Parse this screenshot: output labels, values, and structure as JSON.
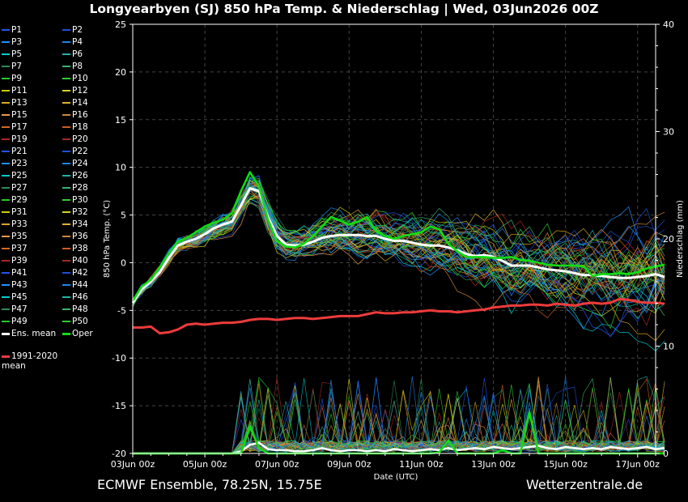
{
  "title": "Longyearbyen  (SJ)  850 hPa Temp. & Niederschlag | Wed, 03Jun2026 00Z",
  "footer_left": "ECMWF Ensemble, 78.25N, 15.75E",
  "footer_right": "Wetterzentrale.de",
  "chart_data": {
    "type": "line",
    "title": "Longyearbyen  (SJ)  850 hPa Temp. & Niederschlag | Wed, 03Jun2026 00Z",
    "xlabel": "Date (UTC)",
    "ylabel": "850 hPa Temp. (°C)",
    "y2label": "Niederschlag (mm)",
    "ylim": [
      -20,
      25
    ],
    "y2lim": [
      0,
      40
    ],
    "yticks": [
      -20,
      -15,
      -10,
      -5,
      0,
      5,
      10,
      15,
      20,
      25
    ],
    "y2ticks": [
      0,
      10,
      20,
      30,
      40
    ],
    "x_start": "03Jun 00z",
    "x_step_hours": 6,
    "x_end_hours": 348,
    "xticks": [
      {
        "label": "03Jun 00z",
        "hours": 0
      },
      {
        "label": "05Jun 00z",
        "hours": 48
      },
      {
        "label": "07Jun 00z",
        "hours": 96
      },
      {
        "label": "09Jun 00z",
        "hours": 144
      },
      {
        "label": "11Jun 00z",
        "hours": 192
      },
      {
        "label": "13Jun 00z",
        "hours": 240
      },
      {
        "label": "15Jun 00z",
        "hours": 288
      },
      {
        "label": "17Jun 00z",
        "hours": 336
      }
    ],
    "grid": true,
    "legend_position": "left",
    "ens_mean_label": "Ens. mean",
    "oper_label": "Oper",
    "clim_label": "1991-2020 mean",
    "series": [
      {
        "name": "Ens. mean",
        "color": "#ffffff",
        "key": "ens_mean_temp",
        "values": [
          -4.2,
          -2.8,
          -2.0,
          -1.0,
          0.5,
          1.8,
          2.2,
          2.5,
          3.0,
          3.6,
          4.0,
          4.3,
          6.0,
          7.8,
          7.5,
          4.8,
          2.8,
          1.9,
          1.8,
          1.9,
          2.2,
          2.6,
          2.8,
          2.9,
          2.9,
          2.9,
          2.8,
          2.8,
          2.5,
          2.3,
          2.3,
          2.1,
          1.9,
          1.8,
          1.8,
          1.6,
          1.3,
          0.9,
          0.7,
          0.8,
          0.6,
          0.2,
          -0.3,
          -0.3,
          -0.3,
          -0.5,
          -0.7,
          -0.8,
          -0.9,
          -1.1,
          -1.3,
          -1.3,
          -1.4,
          -1.5,
          -1.6,
          -1.6,
          -1.5,
          -1.4,
          -1.2,
          -1.5
        ]
      },
      {
        "name": "Oper",
        "color": "#11dd11",
        "key": "oper_temp",
        "values": [
          -4.0,
          -2.5,
          -1.8,
          -0.5,
          1.0,
          2.2,
          2.6,
          3.2,
          3.8,
          4.2,
          4.5,
          5.2,
          7.5,
          9.5,
          8.0,
          4.5,
          2.3,
          1.7,
          1.6,
          2.0,
          2.8,
          3.8,
          4.8,
          4.4,
          4.0,
          4.3,
          4.8,
          3.3,
          2.8,
          2.5,
          2.8,
          3.0,
          3.2,
          3.8,
          3.5,
          2.0,
          1.2,
          0.6,
          0.6,
          0.6,
          0.5,
          0.5,
          0.6,
          0.3,
          0.2,
          0.0,
          -0.2,
          -0.3,
          -0.3,
          -0.3,
          -0.4,
          -1.4,
          -1.2,
          -1.2,
          -1.1,
          -1.2,
          -1.0,
          -0.6,
          -0.4,
          -0.2
        ]
      },
      {
        "name": "1991-2020 mean",
        "color": "#ee3b3b",
        "key": "clim_temp",
        "values": [
          -6.8,
          -6.8,
          -6.7,
          -7.4,
          -7.3,
          -7.0,
          -6.5,
          -6.4,
          -6.5,
          -6.4,
          -6.3,
          -6.3,
          -6.2,
          -6.0,
          -5.9,
          -5.9,
          -6.0,
          -5.9,
          -5.8,
          -5.8,
          -5.9,
          -5.8,
          -5.7,
          -5.6,
          -5.6,
          -5.6,
          -5.4,
          -5.2,
          -5.3,
          -5.3,
          -5.2,
          -5.2,
          -5.1,
          -5.0,
          -5.1,
          -5.1,
          -5.2,
          -5.1,
          -5.0,
          -4.9,
          -4.7,
          -4.6,
          -4.5,
          -4.5,
          -4.4,
          -4.4,
          -4.5,
          -4.3,
          -4.4,
          -4.5,
          -4.3,
          -4.2,
          -4.3,
          -4.2,
          -3.8,
          -3.9,
          -4.1,
          -4.2,
          -4.2,
          -4.3
        ]
      },
      {
        "name": "Ens. mean precipitation",
        "color": "#ffffff",
        "axis": "y2",
        "key": "ens_mean_precip",
        "values": [
          0,
          0,
          0,
          0,
          0,
          0,
          0,
          0,
          0,
          0,
          0,
          0,
          0.2,
          0.8,
          1.0,
          0.4,
          0.3,
          0.3,
          0.2,
          0.2,
          0.3,
          0.5,
          0.3,
          0.2,
          0.3,
          0.3,
          0.2,
          0.3,
          0.2,
          0.4,
          0.3,
          0.2,
          0.3,
          0.4,
          0.3,
          0.5,
          0.3,
          0.4,
          0.5,
          0.4,
          0.6,
          0.5,
          0.4,
          0.5,
          0.6,
          0.7,
          0.5,
          0.4,
          0.6,
          0.5,
          0.4,
          0.5,
          0.4,
          0.6,
          0.5,
          0.4,
          0.5,
          0.6,
          0.4,
          0.5
        ]
      },
      {
        "name": "Oper precipitation",
        "color": "#11dd11",
        "axis": "y2",
        "key": "oper_precip",
        "values": [
          0,
          0,
          0,
          0,
          0,
          0,
          0,
          0,
          0,
          0,
          0,
          0,
          0,
          2.5,
          0.5,
          0,
          0,
          0,
          0,
          0,
          0,
          0,
          0,
          0,
          0,
          0,
          0,
          0,
          0,
          0,
          0,
          0,
          0,
          0,
          0.1,
          1.2,
          0,
          0,
          0,
          0,
          0,
          0.3,
          0,
          0,
          3.8,
          0,
          0,
          0,
          0,
          0,
          0,
          0,
          0,
          0,
          0,
          0,
          0,
          0,
          0,
          0
        ]
      }
    ],
    "legend_entries": [
      {
        "name": "P1",
        "color": "#2255ee"
      },
      {
        "name": "P2",
        "color": "#1f4fd8"
      },
      {
        "name": "P3",
        "color": "#1e90ff"
      },
      {
        "name": "P4",
        "color": "#1c86ee"
      },
      {
        "name": "P5",
        "color": "#00cdcd"
      },
      {
        "name": "P6",
        "color": "#20b2aa"
      },
      {
        "name": "P7",
        "color": "#2e8b57"
      },
      {
        "name": "P8",
        "color": "#3cb371"
      },
      {
        "name": "P9",
        "color": "#22cc22"
      },
      {
        "name": "P10",
        "color": "#32cd32"
      },
      {
        "name": "P11",
        "color": "#cdcd00"
      },
      {
        "name": "P12",
        "color": "#d2d22a"
      },
      {
        "name": "P13",
        "color": "#daa520"
      },
      {
        "name": "P14",
        "color": "#e0b030"
      },
      {
        "name": "P15",
        "color": "#ee9a49"
      },
      {
        "name": "P16",
        "color": "#cd853f"
      },
      {
        "name": "P17",
        "color": "#d2691e"
      },
      {
        "name": "P18",
        "color": "#cd5c1f"
      },
      {
        "name": "P19",
        "color": "#b22222"
      },
      {
        "name": "P20",
        "color": "#a52a2a"
      },
      {
        "name": "P21",
        "color": "#2255ee"
      },
      {
        "name": "P22",
        "color": "#1f4fd8"
      },
      {
        "name": "P23",
        "color": "#1e90ff"
      },
      {
        "name": "P24",
        "color": "#1c86ee"
      },
      {
        "name": "P25",
        "color": "#00cdcd"
      },
      {
        "name": "P26",
        "color": "#20b2aa"
      },
      {
        "name": "P27",
        "color": "#2e8b57"
      },
      {
        "name": "P28",
        "color": "#3cb371"
      },
      {
        "name": "P29",
        "color": "#22cc22"
      },
      {
        "name": "P30",
        "color": "#32cd32"
      },
      {
        "name": "P31",
        "color": "#cdcd00"
      },
      {
        "name": "P32",
        "color": "#d2d22a"
      },
      {
        "name": "P33",
        "color": "#daa520"
      },
      {
        "name": "P34",
        "color": "#e0b030"
      },
      {
        "name": "P35",
        "color": "#ee9a49"
      },
      {
        "name": "P36",
        "color": "#cd853f"
      },
      {
        "name": "P37",
        "color": "#d2691e"
      },
      {
        "name": "P38",
        "color": "#cd5c1f"
      },
      {
        "name": "P39",
        "color": "#b22222"
      },
      {
        "name": "P40",
        "color": "#a52a2a"
      },
      {
        "name": "P41",
        "color": "#2255ee"
      },
      {
        "name": "P42",
        "color": "#1f4fd8"
      },
      {
        "name": "P43",
        "color": "#1e90ff"
      },
      {
        "name": "P44",
        "color": "#1c86ee"
      },
      {
        "name": "P45",
        "color": "#00cdcd"
      },
      {
        "name": "P46",
        "color": "#20b2aa"
      },
      {
        "name": "P47",
        "color": "#2e8b57"
      },
      {
        "name": "P48",
        "color": "#3cb371"
      },
      {
        "name": "P49",
        "color": "#22cc22"
      },
      {
        "name": "P50",
        "color": "#32cd32"
      }
    ]
  }
}
